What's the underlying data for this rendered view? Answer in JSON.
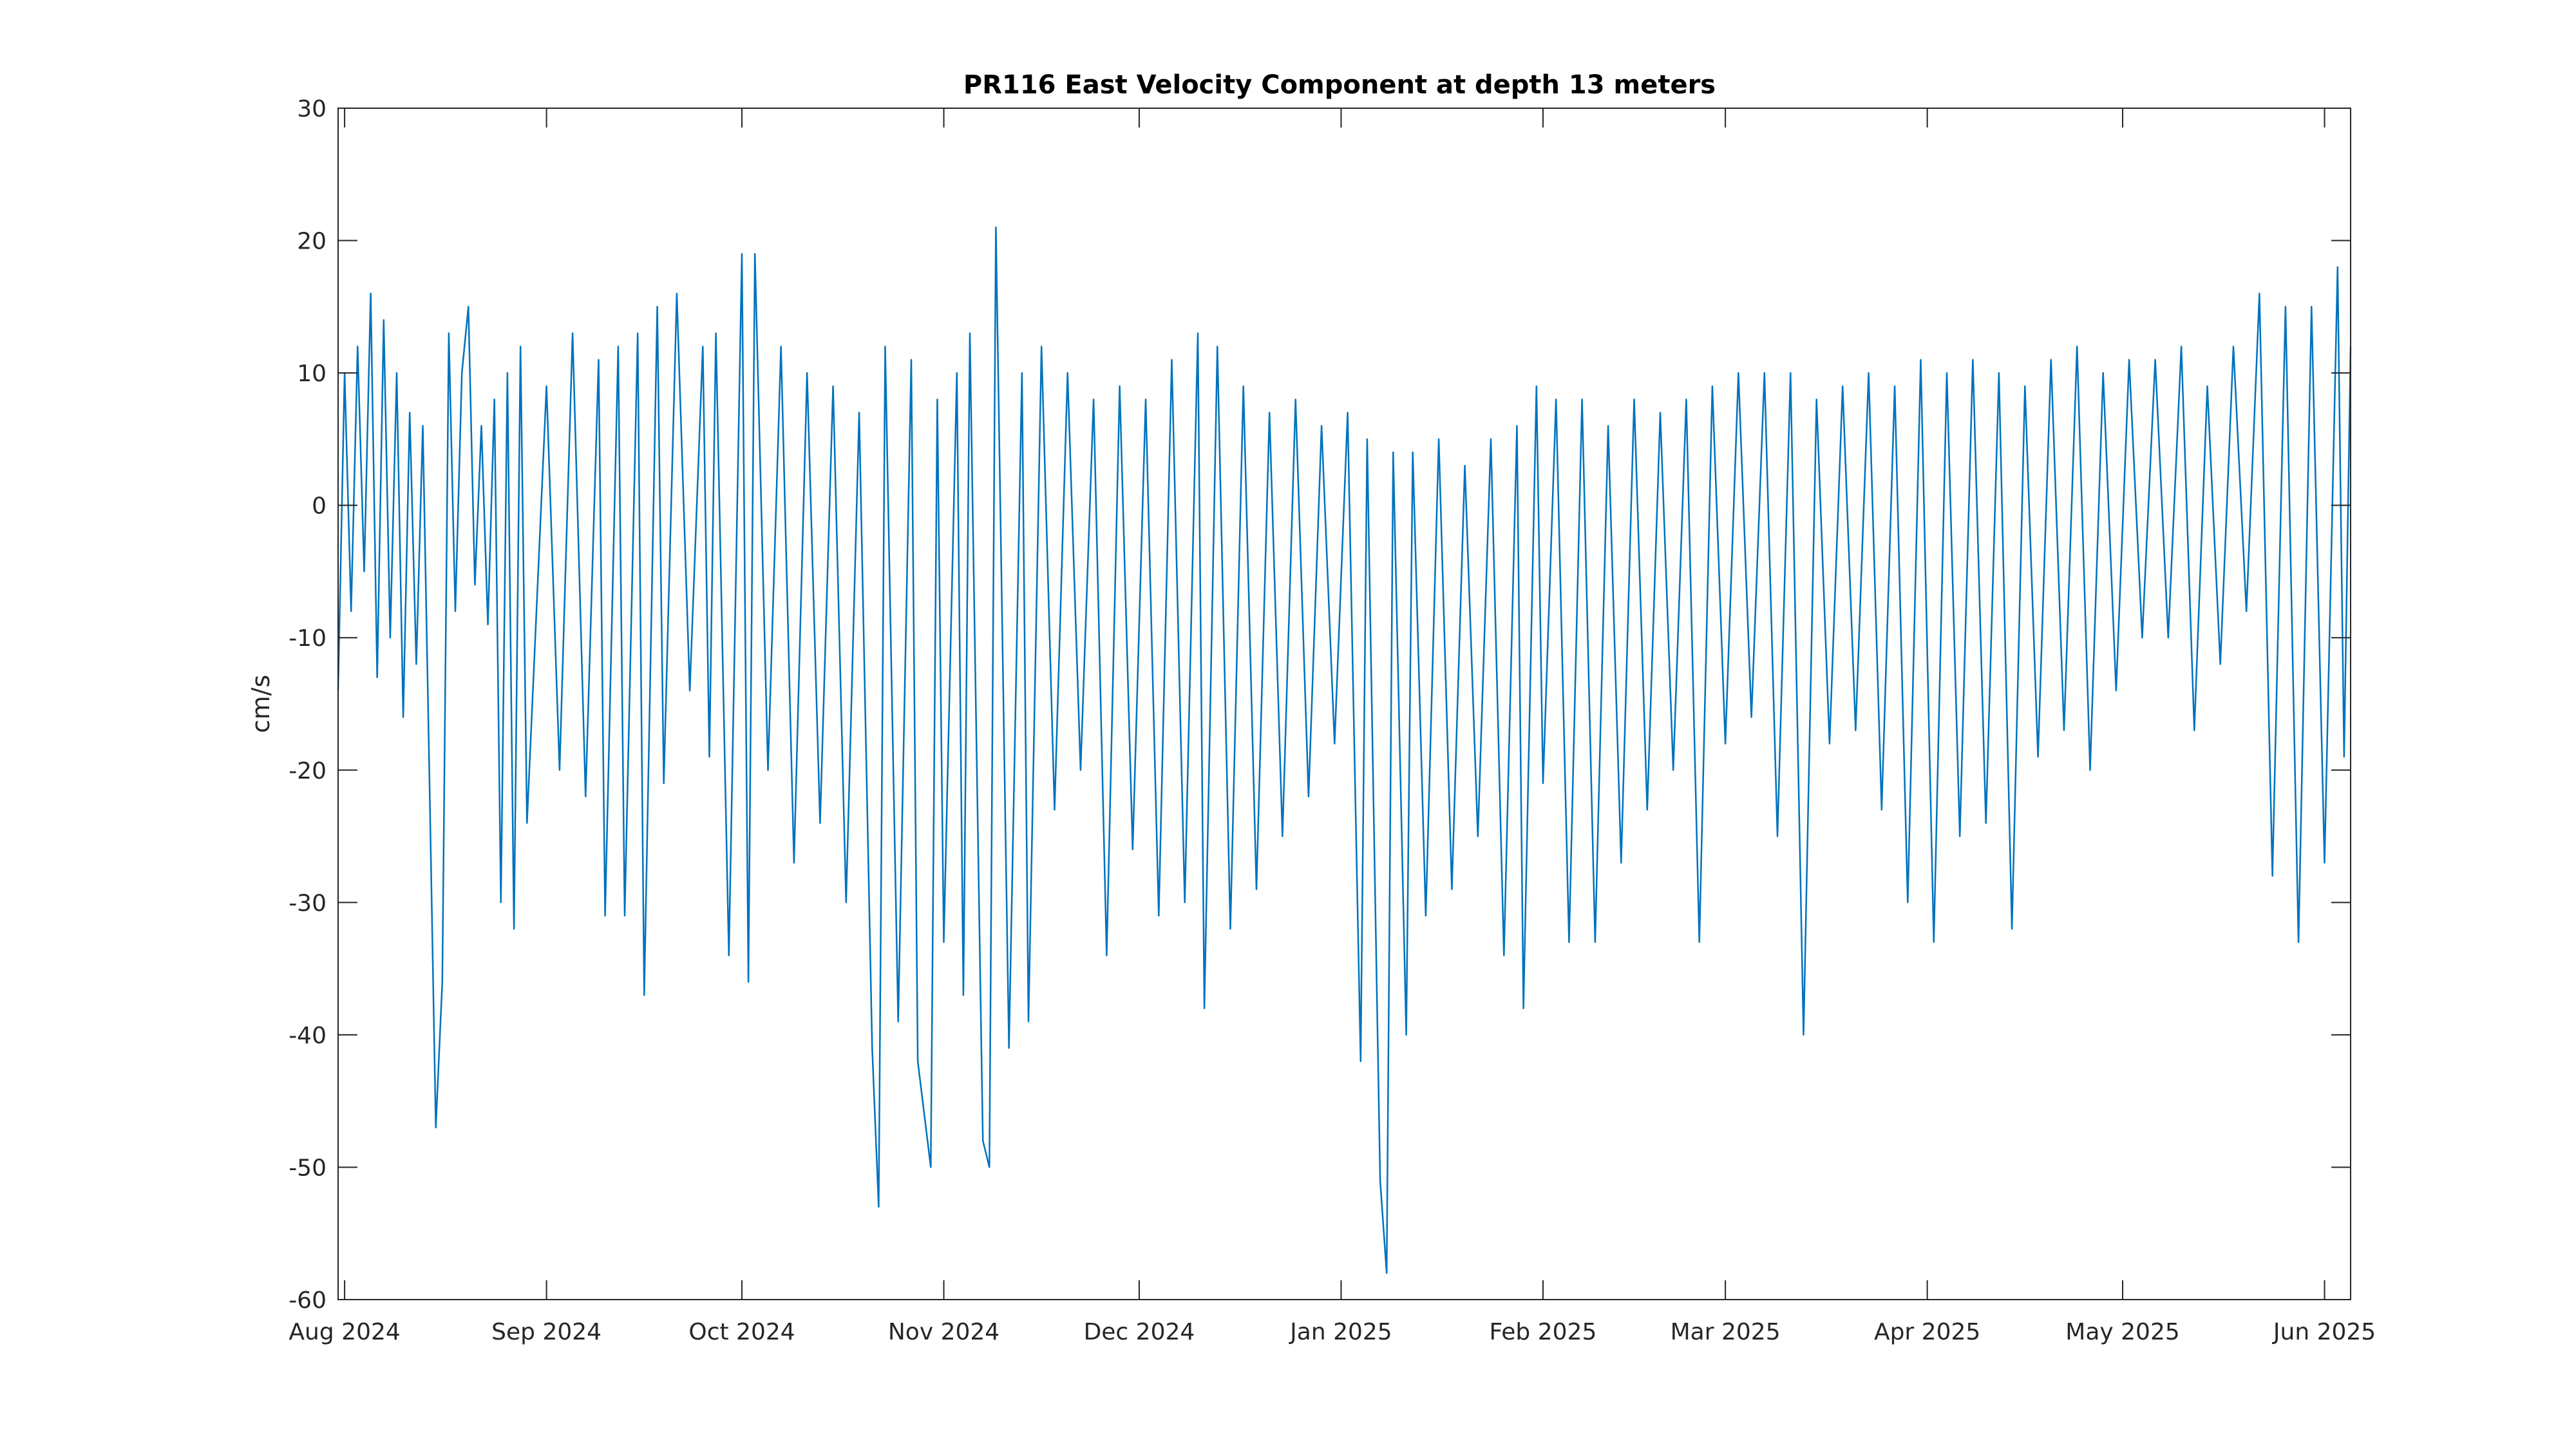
{
  "chart_data": {
    "type": "line",
    "title": "PR116 East Velocity Component at depth 13 meters",
    "xlabel": "",
    "ylabel": "cm/s",
    "x_axis": "date",
    "xlim": [
      "2024-07-31",
      "2025-06-05"
    ],
    "ylim": [
      -60,
      30
    ],
    "yticks": [
      30,
      20,
      10,
      0,
      -10,
      -20,
      -30,
      -40,
      -50,
      -60
    ],
    "xticks": [
      {
        "date": "2024-08-01",
        "label": "Aug 2024"
      },
      {
        "date": "2024-09-01",
        "label": "Sep 2024"
      },
      {
        "date": "2024-10-01",
        "label": "Oct 2024"
      },
      {
        "date": "2024-11-01",
        "label": "Nov 2024"
      },
      {
        "date": "2024-12-01",
        "label": "Dec 2024"
      },
      {
        "date": "2025-01-01",
        "label": "Jan 2025"
      },
      {
        "date": "2025-02-01",
        "label": "Feb 2025"
      },
      {
        "date": "2025-03-01",
        "label": "Mar 2025"
      },
      {
        "date": "2025-04-01",
        "label": "Apr 2025"
      },
      {
        "date": "2025-05-01",
        "label": "May 2025"
      },
      {
        "date": "2025-06-01",
        "label": "Jun 2025"
      }
    ],
    "grid": false,
    "line_color": "#0072BD",
    "series": [
      {
        "name": "",
        "description_points": [
          {
            "x": "2024-07-31",
            "y": -14
          },
          {
            "x": "2024-08-01",
            "y": 10
          },
          {
            "x": "2024-08-02",
            "y": -8
          },
          {
            "x": "2024-08-03",
            "y": 12
          },
          {
            "x": "2024-08-04",
            "y": -5
          },
          {
            "x": "2024-08-05",
            "y": 16
          },
          {
            "x": "2024-08-06",
            "y": -13
          },
          {
            "x": "2024-08-07",
            "y": 14
          },
          {
            "x": "2024-08-08",
            "y": -10
          },
          {
            "x": "2024-08-09",
            "y": 10
          },
          {
            "x": "2024-08-10",
            "y": -16
          },
          {
            "x": "2024-08-11",
            "y": 7
          },
          {
            "x": "2024-08-12",
            "y": -12
          },
          {
            "x": "2024-08-13",
            "y": 6
          },
          {
            "x": "2024-08-14",
            "y": -20
          },
          {
            "x": "2024-08-15",
            "y": -47
          },
          {
            "x": "2024-08-16",
            "y": -36
          },
          {
            "x": "2024-08-17",
            "y": 13
          },
          {
            "x": "2024-08-18",
            "y": -8
          },
          {
            "x": "2024-08-19",
            "y": 10
          },
          {
            "x": "2024-08-20",
            "y": 15
          },
          {
            "x": "2024-08-21",
            "y": -6
          },
          {
            "x": "2024-08-22",
            "y": 6
          },
          {
            "x": "2024-08-23",
            "y": -9
          },
          {
            "x": "2024-08-24",
            "y": 8
          },
          {
            "x": "2024-08-25",
            "y": -30
          },
          {
            "x": "2024-08-26",
            "y": 10
          },
          {
            "x": "2024-08-27",
            "y": -32
          },
          {
            "x": "2024-08-28",
            "y": 12
          },
          {
            "x": "2024-08-29",
            "y": -24
          },
          {
            "x": "2024-09-01",
            "y": 9
          },
          {
            "x": "2024-09-03",
            "y": -20
          },
          {
            "x": "2024-09-05",
            "y": 13
          },
          {
            "x": "2024-09-07",
            "y": -22
          },
          {
            "x": "2024-09-09",
            "y": 11
          },
          {
            "x": "2024-09-10",
            "y": -31
          },
          {
            "x": "2024-09-12",
            "y": 12
          },
          {
            "x": "2024-09-13",
            "y": -31
          },
          {
            "x": "2024-09-15",
            "y": 13
          },
          {
            "x": "2024-09-16",
            "y": -37
          },
          {
            "x": "2024-09-18",
            "y": 15
          },
          {
            "x": "2024-09-19",
            "y": -21
          },
          {
            "x": "2024-09-21",
            "y": 16
          },
          {
            "x": "2024-09-23",
            "y": -14
          },
          {
            "x": "2024-09-25",
            "y": 12
          },
          {
            "x": "2024-09-26",
            "y": -19
          },
          {
            "x": "2024-09-27",
            "y": 13
          },
          {
            "x": "2024-09-29",
            "y": -34
          },
          {
            "x": "2024-10-01",
            "y": 19
          },
          {
            "x": "2024-10-02",
            "y": -36
          },
          {
            "x": "2024-10-03",
            "y": 19
          },
          {
            "x": "2024-10-05",
            "y": -20
          },
          {
            "x": "2024-10-07",
            "y": 12
          },
          {
            "x": "2024-10-09",
            "y": -27
          },
          {
            "x": "2024-10-11",
            "y": 10
          },
          {
            "x": "2024-10-13",
            "y": -24
          },
          {
            "x": "2024-10-15",
            "y": 9
          },
          {
            "x": "2024-10-17",
            "y": -30
          },
          {
            "x": "2024-10-19",
            "y": 7
          },
          {
            "x": "2024-10-21",
            "y": -41
          },
          {
            "x": "2024-10-22",
            "y": -53
          },
          {
            "x": "2024-10-23",
            "y": 12
          },
          {
            "x": "2024-10-25",
            "y": -39
          },
          {
            "x": "2024-10-27",
            "y": 11
          },
          {
            "x": "2024-10-28",
            "y": -42
          },
          {
            "x": "2024-10-30",
            "y": -50
          },
          {
            "x": "2024-10-31",
            "y": 8
          },
          {
            "x": "2024-11-01",
            "y": -33
          },
          {
            "x": "2024-11-03",
            "y": 10
          },
          {
            "x": "2024-11-04",
            "y": -37
          },
          {
            "x": "2024-11-05",
            "y": 13
          },
          {
            "x": "2024-11-07",
            "y": -48
          },
          {
            "x": "2024-11-08",
            "y": -50
          },
          {
            "x": "2024-11-09",
            "y": 21
          },
          {
            "x": "2024-11-11",
            "y": -41
          },
          {
            "x": "2024-11-13",
            "y": 10
          },
          {
            "x": "2024-11-14",
            "y": -39
          },
          {
            "x": "2024-11-16",
            "y": 12
          },
          {
            "x": "2024-11-18",
            "y": -23
          },
          {
            "x": "2024-11-20",
            "y": 10
          },
          {
            "x": "2024-11-22",
            "y": -20
          },
          {
            "x": "2024-11-24",
            "y": 8
          },
          {
            "x": "2024-11-26",
            "y": -34
          },
          {
            "x": "2024-11-28",
            "y": 9
          },
          {
            "x": "2024-11-30",
            "y": -26
          },
          {
            "x": "2024-12-02",
            "y": 8
          },
          {
            "x": "2024-12-04",
            "y": -31
          },
          {
            "x": "2024-12-06",
            "y": 11
          },
          {
            "x": "2024-12-08",
            "y": -30
          },
          {
            "x": "2024-12-10",
            "y": 13
          },
          {
            "x": "2024-12-11",
            "y": -38
          },
          {
            "x": "2024-12-13",
            "y": 12
          },
          {
            "x": "2024-12-15",
            "y": -32
          },
          {
            "x": "2024-12-17",
            "y": 9
          },
          {
            "x": "2024-12-19",
            "y": -29
          },
          {
            "x": "2024-12-21",
            "y": 7
          },
          {
            "x": "2024-12-23",
            "y": -25
          },
          {
            "x": "2024-12-25",
            "y": 8
          },
          {
            "x": "2024-12-27",
            "y": -22
          },
          {
            "x": "2024-12-29",
            "y": 6
          },
          {
            "x": "2024-12-31",
            "y": -18
          },
          {
            "x": "2025-01-02",
            "y": 7
          },
          {
            "x": "2025-01-04",
            "y": -42
          },
          {
            "x": "2025-01-05",
            "y": 5
          },
          {
            "x": "2025-01-07",
            "y": -51
          },
          {
            "x": "2025-01-08",
            "y": -58
          },
          {
            "x": "2025-01-09",
            "y": 4
          },
          {
            "x": "2025-01-11",
            "y": -40
          },
          {
            "x": "2025-01-12",
            "y": 4
          },
          {
            "x": "2025-01-14",
            "y": -31
          },
          {
            "x": "2025-01-16",
            "y": 5
          },
          {
            "x": "2025-01-18",
            "y": -29
          },
          {
            "x": "2025-01-20",
            "y": 3
          },
          {
            "x": "2025-01-22",
            "y": -25
          },
          {
            "x": "2025-01-24",
            "y": 5
          },
          {
            "x": "2025-01-26",
            "y": -34
          },
          {
            "x": "2025-01-28",
            "y": 6
          },
          {
            "x": "2025-01-29",
            "y": -38
          },
          {
            "x": "2025-01-31",
            "y": 9
          },
          {
            "x": "2025-02-01",
            "y": -21
          },
          {
            "x": "2025-02-03",
            "y": 8
          },
          {
            "x": "2025-02-05",
            "y": -33
          },
          {
            "x": "2025-02-07",
            "y": 8
          },
          {
            "x": "2025-02-09",
            "y": -33
          },
          {
            "x": "2025-02-11",
            "y": 6
          },
          {
            "x": "2025-02-13",
            "y": -27
          },
          {
            "x": "2025-02-15",
            "y": 8
          },
          {
            "x": "2025-02-17",
            "y": -23
          },
          {
            "x": "2025-02-19",
            "y": 7
          },
          {
            "x": "2025-02-21",
            "y": -20
          },
          {
            "x": "2025-02-23",
            "y": 8
          },
          {
            "x": "2025-02-25",
            "y": -33
          },
          {
            "x": "2025-02-27",
            "y": 9
          },
          {
            "x": "2025-03-01",
            "y": -18
          },
          {
            "x": "2025-03-03",
            "y": 10
          },
          {
            "x": "2025-03-05",
            "y": -16
          },
          {
            "x": "2025-03-07",
            "y": 10
          },
          {
            "x": "2025-03-09",
            "y": -25
          },
          {
            "x": "2025-03-11",
            "y": 10
          },
          {
            "x": "2025-03-13",
            "y": -40
          },
          {
            "x": "2025-03-15",
            "y": 8
          },
          {
            "x": "2025-03-17",
            "y": -18
          },
          {
            "x": "2025-03-19",
            "y": 9
          },
          {
            "x": "2025-03-21",
            "y": -17
          },
          {
            "x": "2025-03-23",
            "y": 10
          },
          {
            "x": "2025-03-25",
            "y": -23
          },
          {
            "x": "2025-03-27",
            "y": 9
          },
          {
            "x": "2025-03-29",
            "y": -30
          },
          {
            "x": "2025-03-31",
            "y": 11
          },
          {
            "x": "2025-04-02",
            "y": -33
          },
          {
            "x": "2025-04-04",
            "y": 10
          },
          {
            "x": "2025-04-06",
            "y": -25
          },
          {
            "x": "2025-04-08",
            "y": 11
          },
          {
            "x": "2025-04-10",
            "y": -24
          },
          {
            "x": "2025-04-12",
            "y": 10
          },
          {
            "x": "2025-04-14",
            "y": -32
          },
          {
            "x": "2025-04-16",
            "y": 9
          },
          {
            "x": "2025-04-18",
            "y": -19
          },
          {
            "x": "2025-04-20",
            "y": 11
          },
          {
            "x": "2025-04-22",
            "y": -17
          },
          {
            "x": "2025-04-24",
            "y": 12
          },
          {
            "x": "2025-04-26",
            "y": -20
          },
          {
            "x": "2025-04-28",
            "y": 10
          },
          {
            "x": "2025-04-30",
            "y": -14
          },
          {
            "x": "2025-05-02",
            "y": 11
          },
          {
            "x": "2025-05-04",
            "y": -10
          },
          {
            "x": "2025-05-06",
            "y": 11
          },
          {
            "x": "2025-05-08",
            "y": -10
          },
          {
            "x": "2025-05-10",
            "y": 12
          },
          {
            "x": "2025-05-12",
            "y": -17
          },
          {
            "x": "2025-05-14",
            "y": 9
          },
          {
            "x": "2025-05-16",
            "y": -12
          },
          {
            "x": "2025-05-18",
            "y": 12
          },
          {
            "x": "2025-05-20",
            "y": -8
          },
          {
            "x": "2025-05-22",
            "y": 16
          },
          {
            "x": "2025-05-24",
            "y": -28
          },
          {
            "x": "2025-05-26",
            "y": 15
          },
          {
            "x": "2025-05-28",
            "y": -33
          },
          {
            "x": "2025-05-30",
            "y": 15
          },
          {
            "x": "2025-06-01",
            "y": -27
          },
          {
            "x": "2025-06-03",
            "y": 18
          },
          {
            "x": "2025-06-04",
            "y": -19
          },
          {
            "x": "2025-06-05",
            "y": 12
          }
        ]
      }
    ]
  }
}
